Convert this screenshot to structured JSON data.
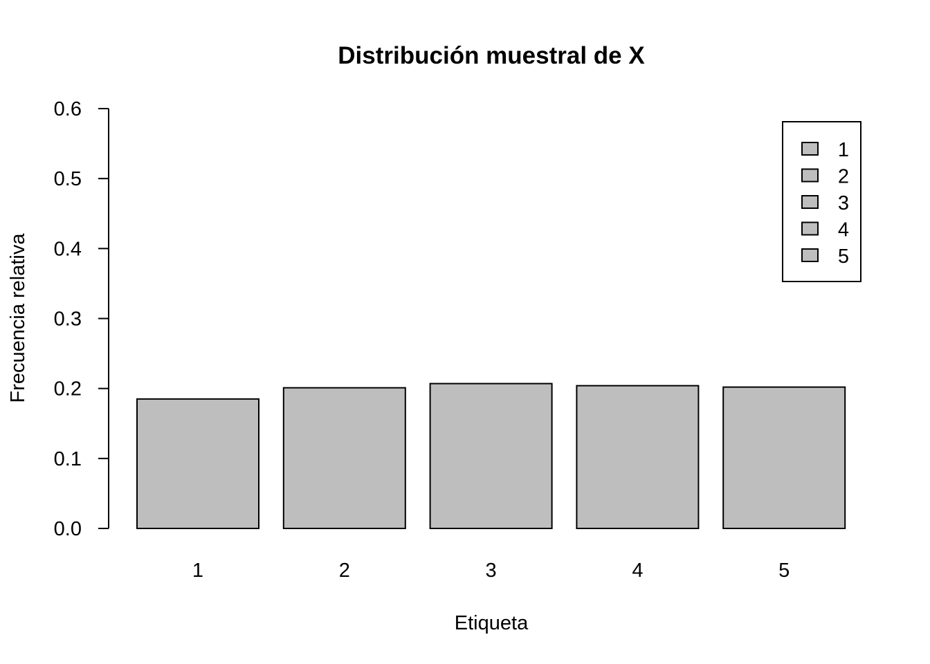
{
  "chart_data": {
    "type": "bar",
    "title": "Distribución muestral de X",
    "xlabel": "Etiqueta",
    "ylabel": "Frecuencia relativa",
    "categories": [
      "1",
      "2",
      "3",
      "4",
      "5"
    ],
    "values": [
      0.185,
      0.201,
      0.207,
      0.204,
      0.202
    ],
    "ylim": [
      0,
      0.6
    ],
    "yticks": [
      "0.0",
      "0.1",
      "0.2",
      "0.3",
      "0.4",
      "0.5",
      "0.6"
    ],
    "grid": false,
    "legend": {
      "position": "top-right",
      "entries": [
        "1",
        "2",
        "3",
        "4",
        "5"
      ]
    },
    "colors": {
      "bar_fill": "#bebebe",
      "bar_stroke": "#000000",
      "axis": "#000000"
    }
  }
}
